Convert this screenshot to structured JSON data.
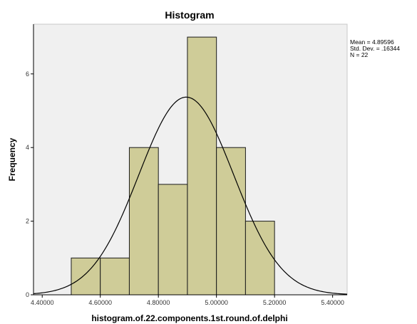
{
  "chart_data": {
    "type": "bar",
    "title": "Histogram",
    "xlabel": "histogram.of.22.components.1st.round.of.delphi",
    "ylabel": "Frequency",
    "xlim": [
      4.37,
      5.45
    ],
    "ylim": [
      0,
      7.35
    ],
    "x_ticks": [
      4.4,
      4.6,
      4.8,
      5.0,
      5.2,
      5.4
    ],
    "x_tick_labels": [
      "4.40000",
      "4.60000",
      "4.80000",
      "5.00000",
      "5.20000",
      "5.40000"
    ],
    "y_ticks": [
      0,
      2,
      4,
      6
    ],
    "y_tick_labels": [
      "0",
      "2",
      "4",
      "6"
    ],
    "bins": [
      {
        "start": 4.5,
        "end": 4.6,
        "count": 1
      },
      {
        "start": 4.6,
        "end": 4.7,
        "count": 1
      },
      {
        "start": 4.7,
        "end": 4.8,
        "count": 4
      },
      {
        "start": 4.8,
        "end": 4.9,
        "count": 3
      },
      {
        "start": 4.9,
        "end": 5.0,
        "count": 7
      },
      {
        "start": 5.0,
        "end": 5.1,
        "count": 4
      },
      {
        "start": 5.1,
        "end": 5.2,
        "count": 2
      }
    ],
    "normal_curve": {
      "mean": 4.89596,
      "std_dev": 0.16344,
      "n": 22,
      "bin_width": 0.1
    },
    "stats_lines": [
      "Mean = 4.89596",
      "Std. Dev. = .16344",
      "N = 22"
    ],
    "grid": false,
    "colors": {
      "plot_bg": "#f0f0f0",
      "bar_fill": "#cfcc98",
      "bar_stroke": "#1a1a1a",
      "curve": "#000000"
    }
  }
}
